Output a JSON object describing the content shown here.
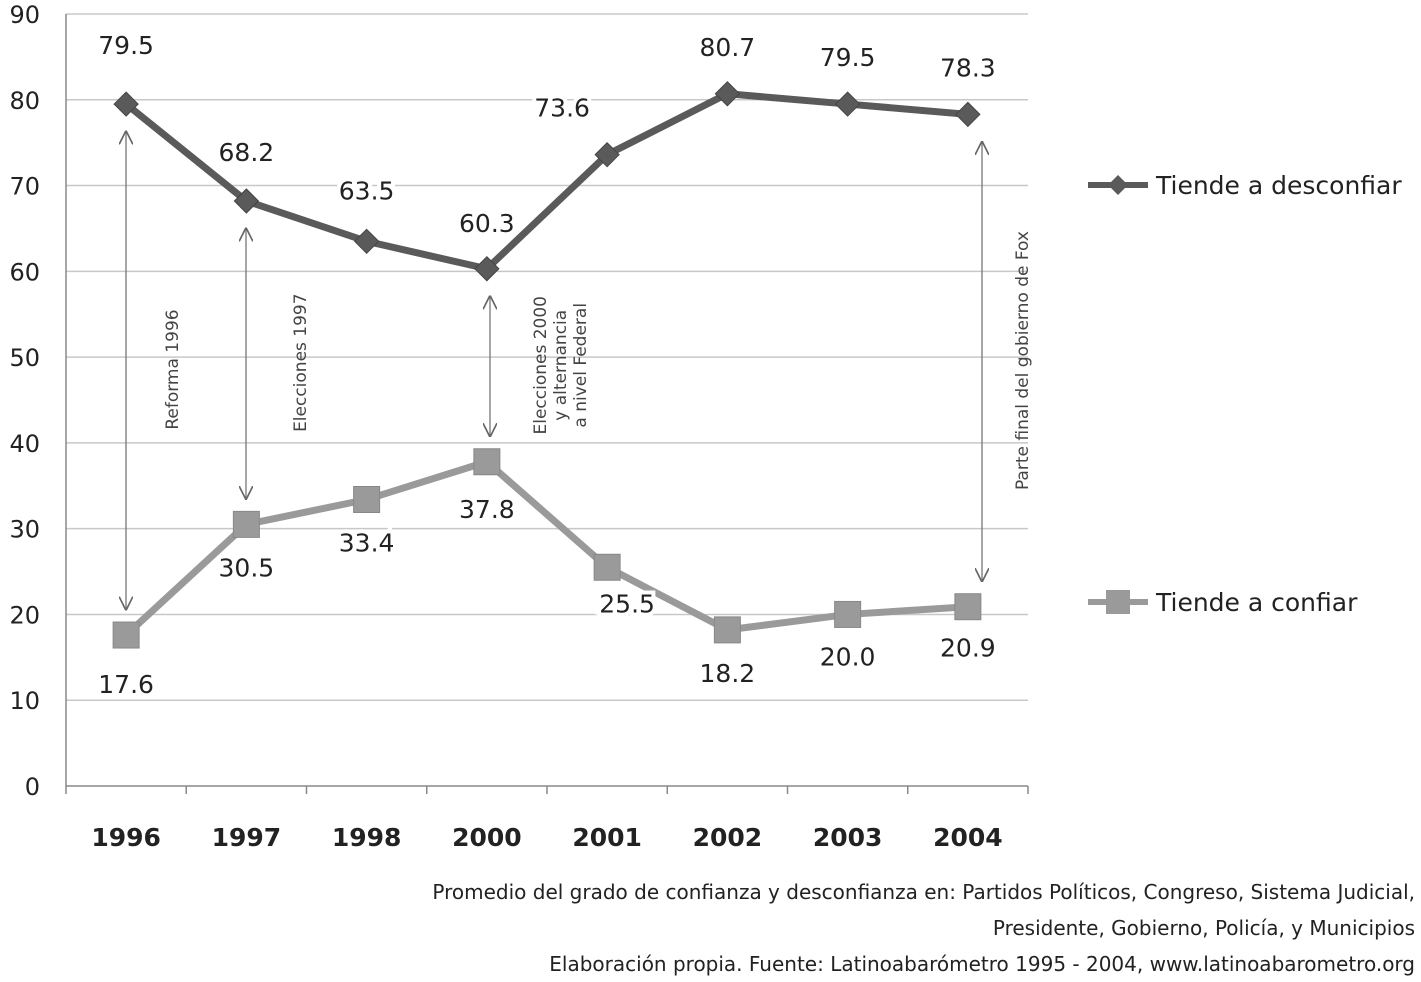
{
  "chart_data": {
    "type": "line",
    "categories": [
      "1996",
      "1997",
      "1998",
      "2000",
      "2001",
      "2002",
      "2003",
      "2004"
    ],
    "ylim": [
      0,
      90
    ],
    "yticks": [
      0,
      10,
      20,
      30,
      40,
      50,
      60,
      70,
      80,
      90
    ],
    "grid": "horizontal",
    "legend_position": "right",
    "series": [
      {
        "name": "Tiende a desconfiar",
        "values": [
          79.5,
          68.2,
          63.5,
          60.3,
          73.6,
          80.7,
          79.5,
          78.3
        ],
        "labels": [
          "79.5",
          "68.2",
          "63.5",
          "60.3",
          "73.6",
          "80.7",
          "79.5",
          "78.3"
        ],
        "marker": "diamond",
        "color": "#5a5a5a"
      },
      {
        "name": "Tiende a confiar",
        "values": [
          17.6,
          30.5,
          33.4,
          37.8,
          25.5,
          18.2,
          20.0,
          20.9
        ],
        "labels": [
          "17.6",
          "30.5",
          "33.4",
          "37.8",
          "25.5",
          "18.2",
          "20.0",
          "20.9"
        ],
        "marker": "square",
        "color": "#9a9a9a"
      }
    ],
    "annotations": [
      {
        "lines": [
          "Reforma 1996"
        ],
        "category_index": 0,
        "arrow_from": 79.5,
        "arrow_to": 17.6
      },
      {
        "lines": [
          "Elecciones 1997"
        ],
        "category_index": 1,
        "arrow_from": 68.2,
        "arrow_to": 30.5
      },
      {
        "lines": [
          "Elecciones 2000",
          "y alternancia",
          "a nivel Federal"
        ],
        "category_index": 3,
        "arrow_from": 60.3,
        "arrow_to": 37.8
      },
      {
        "lines": [
          "Parte final del gobierno de Fox"
        ],
        "category_index": 7,
        "arrow_from": 78.3,
        "arrow_to": 20.9
      }
    ]
  },
  "footnotes": [
    "Promedio del grado de confianza y desconfianza en: Partidos Políticos, Congreso, Sistema Judicial,",
    "Presidente, Gobierno, Policía, y Municipios",
    "Elaboración propia. Fuente: Latinoabarómetro 1995  - 2004, www.latinoabarometro.org"
  ]
}
